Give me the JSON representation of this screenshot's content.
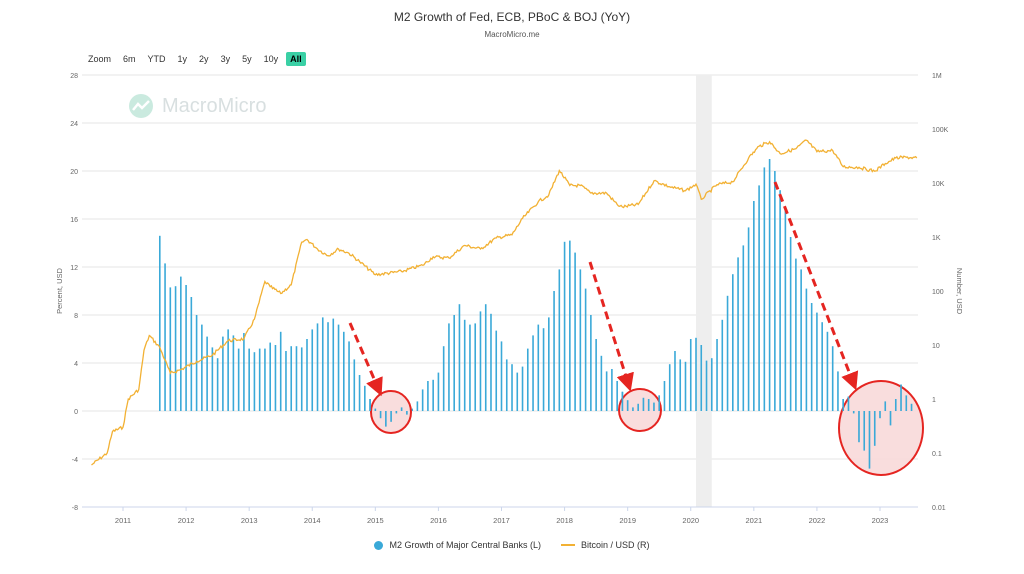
{
  "header": {
    "title": "M2 Growth of Fed, ECB, PBoC & BOJ (YoY)",
    "subtitle": "MacroMicro.me"
  },
  "zoom": {
    "label": "Zoom",
    "buttons": [
      "6m",
      "YTD",
      "1y",
      "2y",
      "3y",
      "5y",
      "10y",
      "All"
    ],
    "active": "All"
  },
  "watermark": {
    "text": "MacroMicro"
  },
  "colors": {
    "bars": "#3aa9d8",
    "bitcoin": "#f2b134",
    "arrow": "#e52521",
    "highlight_fill": "#f8d7d7",
    "shade": "#eeeeee"
  },
  "legend": {
    "items": [
      "M2 Growth of Major Central Banks (L)",
      "Bitcoin / USD (R)"
    ]
  },
  "chart_data": {
    "type": "bar",
    "x_ticks": [
      "2011",
      "2012",
      "2013",
      "2014",
      "2015",
      "2016",
      "2017",
      "2018",
      "2019",
      "2020",
      "2021",
      "2022",
      "2023"
    ],
    "ylabel": "Percent, USD",
    "y2label": "Number, USD",
    "y_ticks": [
      "28",
      "24",
      "20",
      "16",
      "12",
      "8",
      "4",
      "0",
      "-4",
      "-8"
    ],
    "y2_ticks": [
      "1M",
      "100K",
      "10K",
      "1K",
      "100",
      "10",
      "1",
      "0.1",
      "0.01"
    ],
    "ylim": [
      -8,
      28
    ],
    "y2lim_log": [
      0.01,
      1000000
    ],
    "shaded_period": [
      "2020-02",
      "2020-05"
    ],
    "series": [
      {
        "name": "M2 Growth of Major Central Banks (L)",
        "axis": "left",
        "type": "bar",
        "values": [
          [
            "2011-08",
            14.6
          ],
          [
            "2011-09",
            12.3
          ],
          [
            "2011-10",
            10.3
          ],
          [
            "2011-11",
            10.4
          ],
          [
            "2011-12",
            11.2
          ],
          [
            "2012-01",
            10.5
          ],
          [
            "2012-02",
            9.5
          ],
          [
            "2012-03",
            8.0
          ],
          [
            "2012-04",
            7.2
          ],
          [
            "2012-05",
            6.2
          ],
          [
            "2012-06",
            5.3
          ],
          [
            "2012-07",
            4.4
          ],
          [
            "2012-08",
            6.2
          ],
          [
            "2012-09",
            6.8
          ],
          [
            "2012-10",
            6.3
          ],
          [
            "2012-11",
            5.2
          ],
          [
            "2012-12",
            6.5
          ],
          [
            "2013-01",
            5.2
          ],
          [
            "2013-02",
            4.9
          ],
          [
            "2013-03",
            5.2
          ],
          [
            "2013-04",
            5.2
          ],
          [
            "2013-05",
            5.7
          ],
          [
            "2013-06",
            5.5
          ],
          [
            "2013-07",
            6.6
          ],
          [
            "2013-08",
            5.0
          ],
          [
            "2013-09",
            5.4
          ],
          [
            "2013-10",
            5.4
          ],
          [
            "2013-11",
            5.3
          ],
          [
            "2013-12",
            6.0
          ],
          [
            "2014-01",
            6.8
          ],
          [
            "2014-02",
            7.3
          ],
          [
            "2014-03",
            7.8
          ],
          [
            "2014-04",
            7.4
          ],
          [
            "2014-05",
            7.7
          ],
          [
            "2014-06",
            7.2
          ],
          [
            "2014-07",
            6.6
          ],
          [
            "2014-08",
            5.8
          ],
          [
            "2014-09",
            4.3
          ],
          [
            "2014-10",
            3.0
          ],
          [
            "2014-11",
            2.1
          ],
          [
            "2014-12",
            1.0
          ],
          [
            "2015-01",
            0.2
          ],
          [
            "2015-02",
            -0.6
          ],
          [
            "2015-03",
            -1.3
          ],
          [
            "2015-04",
            -0.9
          ],
          [
            "2015-05",
            -0.2
          ],
          [
            "2015-06",
            0.3
          ],
          [
            "2015-07",
            -0.3
          ],
          [
            "2015-08",
            0.2
          ],
          [
            "2015-09",
            0.8
          ],
          [
            "2015-10",
            1.8
          ],
          [
            "2015-11",
            2.5
          ],
          [
            "2015-12",
            2.6
          ],
          [
            "2016-01",
            3.2
          ],
          [
            "2016-02",
            5.4
          ],
          [
            "2016-03",
            7.3
          ],
          [
            "2016-04",
            8.0
          ],
          [
            "2016-05",
            8.9
          ],
          [
            "2016-06",
            7.6
          ],
          [
            "2016-07",
            7.2
          ],
          [
            "2016-08",
            7.3
          ],
          [
            "2016-09",
            8.3
          ],
          [
            "2016-10",
            8.9
          ],
          [
            "2016-11",
            8.1
          ],
          [
            "2016-12",
            6.7
          ],
          [
            "2017-01",
            5.8
          ],
          [
            "2017-02",
            4.3
          ],
          [
            "2017-03",
            3.9
          ],
          [
            "2017-04",
            3.2
          ],
          [
            "2017-05",
            3.7
          ],
          [
            "2017-06",
            5.2
          ],
          [
            "2017-07",
            6.3
          ],
          [
            "2017-08",
            7.2
          ],
          [
            "2017-09",
            6.9
          ],
          [
            "2017-10",
            7.8
          ],
          [
            "2017-11",
            10.0
          ],
          [
            "2017-12",
            11.8
          ],
          [
            "2018-01",
            14.1
          ],
          [
            "2018-02",
            14.2
          ],
          [
            "2018-03",
            13.2
          ],
          [
            "2018-04",
            11.8
          ],
          [
            "2018-05",
            10.2
          ],
          [
            "2018-06",
            8.0
          ],
          [
            "2018-07",
            6.0
          ],
          [
            "2018-08",
            4.6
          ],
          [
            "2018-09",
            3.3
          ],
          [
            "2018-10",
            3.5
          ],
          [
            "2018-11",
            2.5
          ],
          [
            "2018-12",
            1.6
          ],
          [
            "2019-01",
            0.9
          ],
          [
            "2019-02",
            0.3
          ],
          [
            "2019-03",
            0.6
          ],
          [
            "2019-04",
            1.1
          ],
          [
            "2019-05",
            1.0
          ],
          [
            "2019-06",
            0.7
          ],
          [
            "2019-07",
            1.3
          ],
          [
            "2019-08",
            2.5
          ],
          [
            "2019-09",
            3.9
          ],
          [
            "2019-10",
            5.0
          ],
          [
            "2019-11",
            4.3
          ],
          [
            "2019-12",
            4.1
          ],
          [
            "2020-01",
            6.0
          ],
          [
            "2020-02",
            6.1
          ],
          [
            "2020-03",
            5.5
          ],
          [
            "2020-04",
            4.2
          ],
          [
            "2020-05",
            4.4
          ],
          [
            "2020-06",
            6.0
          ],
          [
            "2020-07",
            7.6
          ],
          [
            "2020-08",
            9.6
          ],
          [
            "2020-09",
            11.4
          ],
          [
            "2020-10",
            12.8
          ],
          [
            "2020-11",
            13.8
          ],
          [
            "2020-12",
            15.3
          ],
          [
            "2021-01",
            17.5
          ],
          [
            "2021-02",
            18.8
          ],
          [
            "2021-03",
            20.3
          ],
          [
            "2021-04",
            21.0
          ],
          [
            "2021-05",
            20.0
          ],
          [
            "2021-06",
            18.4
          ],
          [
            "2021-07",
            16.9
          ],
          [
            "2021-08",
            14.5
          ],
          [
            "2021-09",
            12.7
          ],
          [
            "2021-10",
            11.8
          ],
          [
            "2021-11",
            10.2
          ],
          [
            "2021-12",
            9.0
          ],
          [
            "2022-01",
            8.2
          ],
          [
            "2022-02",
            7.4
          ],
          [
            "2022-03",
            6.6
          ],
          [
            "2022-04",
            5.4
          ],
          [
            "2022-05",
            3.3
          ],
          [
            "2022-06",
            1.0
          ],
          [
            "2022-07",
            1.2
          ],
          [
            "2022-08",
            -0.2
          ],
          [
            "2022-09",
            -2.6
          ],
          [
            "2022-10",
            -3.3
          ],
          [
            "2022-11",
            -4.8
          ],
          [
            "2022-12",
            -2.9
          ],
          [
            "2023-01",
            -0.6
          ],
          [
            "2023-02",
            0.8
          ],
          [
            "2023-03",
            -1.2
          ],
          [
            "2023-04",
            1.0
          ],
          [
            "2023-05",
            2.2
          ],
          [
            "2023-06",
            1.3
          ],
          [
            "2023-07",
            0.6
          ]
        ]
      },
      {
        "name": "Bitcoin / USD (R)",
        "axis": "right",
        "type": "line",
        "values": [
          [
            "2010-07",
            0.06
          ],
          [
            "2010-10",
            0.1
          ],
          [
            "2010-11",
            0.25
          ],
          [
            "2011-01",
            0.3
          ],
          [
            "2011-02",
            1.0
          ],
          [
            "2011-04",
            1.5
          ],
          [
            "2011-05",
            8
          ],
          [
            "2011-06",
            15
          ],
          [
            "2011-08",
            9
          ],
          [
            "2011-10",
            3
          ],
          [
            "2011-12",
            3.5
          ],
          [
            "2012-03",
            5
          ],
          [
            "2012-06",
            6.5
          ],
          [
            "2012-09",
            12
          ],
          [
            "2012-12",
            13
          ],
          [
            "2013-02",
            30
          ],
          [
            "2013-04",
            150
          ],
          [
            "2013-05",
            120
          ],
          [
            "2013-07",
            90
          ],
          [
            "2013-09",
            130
          ],
          [
            "2013-11",
            800
          ],
          [
            "2013-12",
            900
          ],
          [
            "2014-02",
            600
          ],
          [
            "2014-04",
            450
          ],
          [
            "2014-06",
            600
          ],
          [
            "2014-08",
            500
          ],
          [
            "2014-10",
            350
          ],
          [
            "2015-01",
            200
          ],
          [
            "2015-06",
            230
          ],
          [
            "2015-10",
            300
          ],
          [
            "2015-12",
            430
          ],
          [
            "2016-03",
            410
          ],
          [
            "2016-06",
            700
          ],
          [
            "2016-09",
            600
          ],
          [
            "2016-12",
            960
          ],
          [
            "2017-03",
            1100
          ],
          [
            "2017-05",
            2200
          ],
          [
            "2017-08",
            4500
          ],
          [
            "2017-10",
            6000
          ],
          [
            "2017-12",
            17000
          ],
          [
            "2018-02",
            9000
          ],
          [
            "2018-04",
            9000
          ],
          [
            "2018-06",
            6500
          ],
          [
            "2018-09",
            6500
          ],
          [
            "2018-11",
            4000
          ],
          [
            "2018-12",
            3600
          ],
          [
            "2019-03",
            4000
          ],
          [
            "2019-06",
            11000
          ],
          [
            "2019-09",
            8500
          ],
          [
            "2019-12",
            7200
          ],
          [
            "2020-02",
            9500
          ],
          [
            "2020-03",
            5000
          ],
          [
            "2020-06",
            9300
          ],
          [
            "2020-09",
            10500
          ],
          [
            "2020-12",
            29000
          ],
          [
            "2021-02",
            48000
          ],
          [
            "2021-04",
            58000
          ],
          [
            "2021-06",
            35000
          ],
          [
            "2021-09",
            43000
          ],
          [
            "2021-11",
            62000
          ],
          [
            "2022-01",
            38000
          ],
          [
            "2022-04",
            40000
          ],
          [
            "2022-06",
            20000
          ],
          [
            "2022-09",
            19500
          ],
          [
            "2022-12",
            16500
          ],
          [
            "2023-02",
            23000
          ],
          [
            "2023-04",
            29000
          ],
          [
            "2023-06",
            30000
          ],
          [
            "2023-08",
            29000
          ]
        ]
      }
    ]
  }
}
